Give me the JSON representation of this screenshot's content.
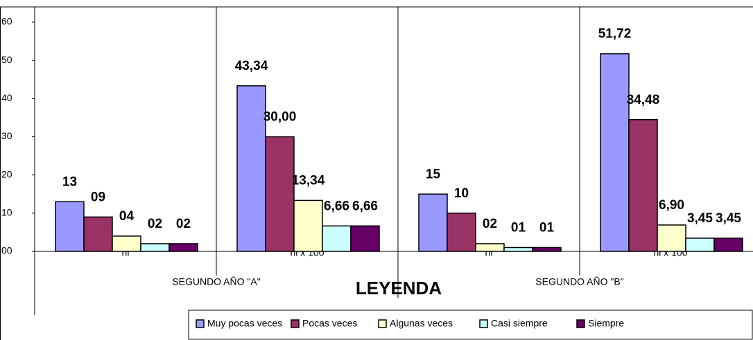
{
  "chart_data": {
    "type": "bar",
    "title": "LEYENDA",
    "categories": [
      "ni",
      "hi x 100",
      "ni",
      "hi x 100"
    ],
    "groups": [
      "SEGUNDO AÑO \"A\"",
      "SEGUNDO AÑO \"B\""
    ],
    "series": [
      {
        "name": "Muy pocas veces",
        "color": "#9999ff",
        "values": [
          13,
          43.34,
          15,
          51.72
        ],
        "value_labels": [
          "13",
          "43,34",
          "15",
          "51,72"
        ]
      },
      {
        "name": "Pocas veces",
        "color": "#993366",
        "values": [
          9,
          30.0,
          10,
          34.48
        ],
        "value_labels": [
          "09",
          "30,00",
          "10",
          "34,48"
        ]
      },
      {
        "name": "Algunas veces",
        "color": "#ffffcc",
        "values": [
          4,
          13.34,
          2,
          6.9
        ],
        "value_labels": [
          "04",
          "13,34",
          "02",
          "6,90"
        ]
      },
      {
        "name": "Casi siempre",
        "color": "#ccffff",
        "values": [
          2,
          6.66,
          1,
          3.45
        ],
        "value_labels": [
          "02",
          "6,66",
          "01",
          "3,45"
        ]
      },
      {
        "name": "Siempre",
        "color": "#660066",
        "values": [
          2,
          6.66,
          1,
          3.45
        ],
        "value_labels": [
          "02",
          "6,66",
          "01",
          "3,45"
        ]
      }
    ],
    "ylim": [
      0,
      60
    ],
    "yticks": [
      {
        "value": 0,
        "label": "00"
      },
      10,
      20,
      30,
      40,
      50,
      60
    ],
    "legend": "bottom"
  }
}
